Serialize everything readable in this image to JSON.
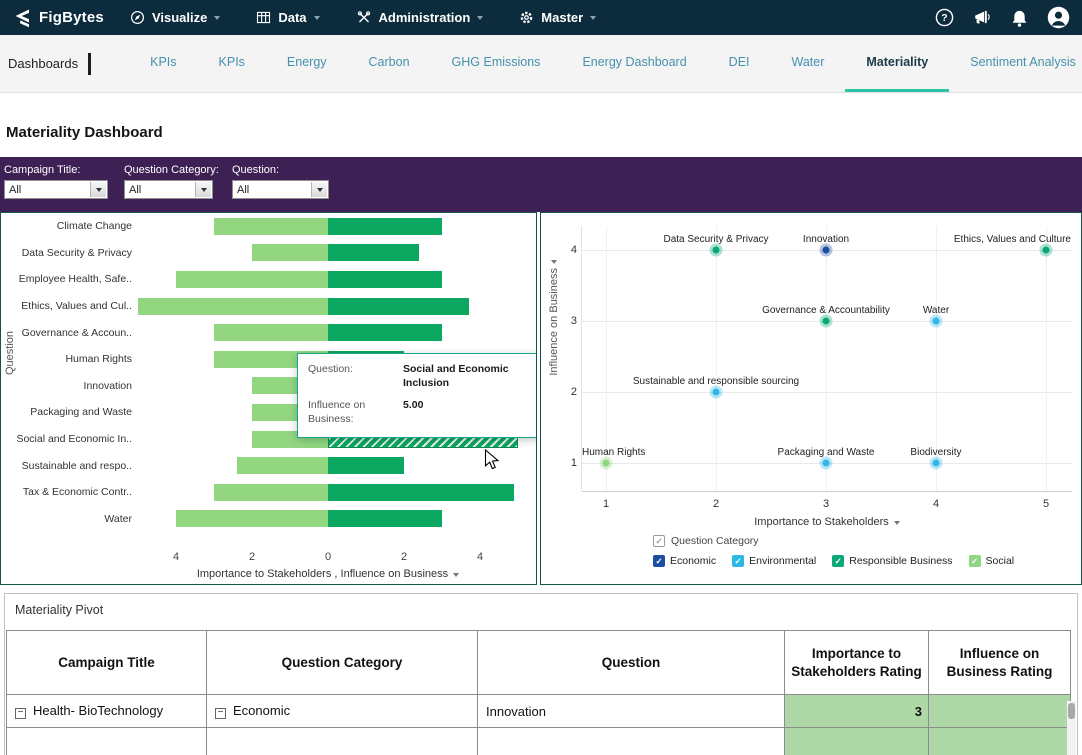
{
  "navbar": {
    "brand": "FigBytes",
    "items": [
      {
        "label": "Visualize",
        "icon": "visualize-icon"
      },
      {
        "label": "Data",
        "icon": "data-icon"
      },
      {
        "label": "Administration",
        "icon": "administration-icon"
      },
      {
        "label": "Master",
        "icon": "master-icon"
      }
    ],
    "right_icons": [
      "help",
      "announcements",
      "notifications",
      "account"
    ]
  },
  "tabs": {
    "dashboards_label": "Dashboards",
    "overflow_indicator": "›",
    "items": [
      {
        "label": "KPIs",
        "active": false
      },
      {
        "label": "KPIs",
        "active": false
      },
      {
        "label": "Energy",
        "active": false
      },
      {
        "label": "Carbon",
        "active": false
      },
      {
        "label": "GHG Emissions",
        "active": false
      },
      {
        "label": "Energy Dashboard",
        "active": false
      },
      {
        "label": "DEI",
        "active": false
      },
      {
        "label": "Water",
        "active": false
      },
      {
        "label": "Materiality",
        "active": true
      },
      {
        "label": "Sentiment Analysis",
        "active": false
      }
    ]
  },
  "page": {
    "title": "Materiality Dashboard"
  },
  "filters": [
    {
      "label": "Campaign Title:",
      "value": "All"
    },
    {
      "label": "Question Category:",
      "value": "All"
    },
    {
      "label": "Question:",
      "value": "All"
    }
  ],
  "chart_data": [
    {
      "type": "bar",
      "orientation": "diverging-horizontal",
      "ylabel": "Question",
      "xlabel": "Importance to Stakeholders , Influence on Business",
      "xticks": [
        "4",
        "2",
        "0",
        "2",
        "4"
      ],
      "xlim": [
        -5,
        5
      ],
      "categories": [
        "Climate Change",
        "Data Security & Privacy",
        "Employee Health, Safe..",
        "Ethics, Values and Cul..",
        "Governance & Accoun..",
        "Human Rights",
        "Innovation",
        "Packaging and Waste",
        "Social and Economic In..",
        "Sustainable and respo..",
        "Tax & Economic Contr..",
        "Water"
      ],
      "series": [
        {
          "name": "Importance to Stakeholders",
          "color": "#93d682",
          "values": [
            3,
            2,
            4,
            5,
            3,
            3,
            2,
            2,
            2,
            2.4,
            3,
            4
          ]
        },
        {
          "name": "Influence on Business",
          "color": "#0ca760",
          "values": [
            3,
            2.4,
            3,
            3.7,
            3,
            2,
            2,
            2,
            5,
            2,
            4.9,
            3
          ]
        }
      ],
      "highlight_index": 8,
      "tooltip": {
        "question_label": "Question:",
        "question_value": "Social and Economic Inclusion",
        "metric_label": "Influence on Business:",
        "metric_value": "5.00"
      }
    },
    {
      "type": "scatter",
      "xlabel": "Importance to Stakeholders",
      "ylabel": "Influence on Business",
      "xticks": [
        1,
        2,
        3,
        4,
        5
      ],
      "yticks": [
        1,
        2,
        3,
        4
      ],
      "xlim": [
        0.5,
        5.5
      ],
      "ylim": [
        0.5,
        4.5
      ],
      "legend_parent": "Question Category",
      "legend": [
        "Economic",
        "Environmental",
        "Responsible Business",
        "Social"
      ],
      "category_colors": {
        "Economic": "#1d4fa1",
        "Environmental": "#2eb8e6",
        "Responsible Business": "#0aa878",
        "Social": "#8fd584"
      },
      "points": [
        {
          "label": "Data Security & Privacy",
          "x": 2,
          "y": 4,
          "category": "Responsible Business"
        },
        {
          "label": "Innovation",
          "x": 3,
          "y": 4,
          "category": "Economic"
        },
        {
          "label": "Ethics, Values and Culture",
          "x": 5,
          "y": 4,
          "category": "Responsible Business"
        },
        {
          "label": "Governance & Accountability",
          "x": 3,
          "y": 3,
          "category": "Responsible Business"
        },
        {
          "label": "Water",
          "x": 4,
          "y": 3,
          "category": "Environmental"
        },
        {
          "label": "Sustainable and responsible sourcing",
          "x": 2,
          "y": 2,
          "category": "Environmental"
        },
        {
          "label": "Human Rights",
          "x": 1,
          "y": 1,
          "category": "Social"
        },
        {
          "label": "Packaging and Waste",
          "x": 3,
          "y": 1,
          "category": "Environmental"
        },
        {
          "label": "Biodiversity",
          "x": 4,
          "y": 1,
          "category": "Environmental"
        }
      ]
    }
  ],
  "pivot": {
    "title": "Materiality Pivot",
    "columns": [
      "Campaign Title",
      "Question Category",
      "Question",
      "Importance to Stakeholders Rating",
      "Influence on Business Rating"
    ],
    "rows": [
      {
        "campaign": "Health- BioTechnology",
        "campaign_collapsed": true,
        "category": "Economic",
        "category_collapsed": true,
        "question": "Innovation",
        "importance": "3",
        "influence": ""
      },
      {
        "campaign": "",
        "campaign_collapsed": false,
        "category": "",
        "category_collapsed": false,
        "question": "",
        "importance": "",
        "influence": ""
      }
    ]
  }
}
